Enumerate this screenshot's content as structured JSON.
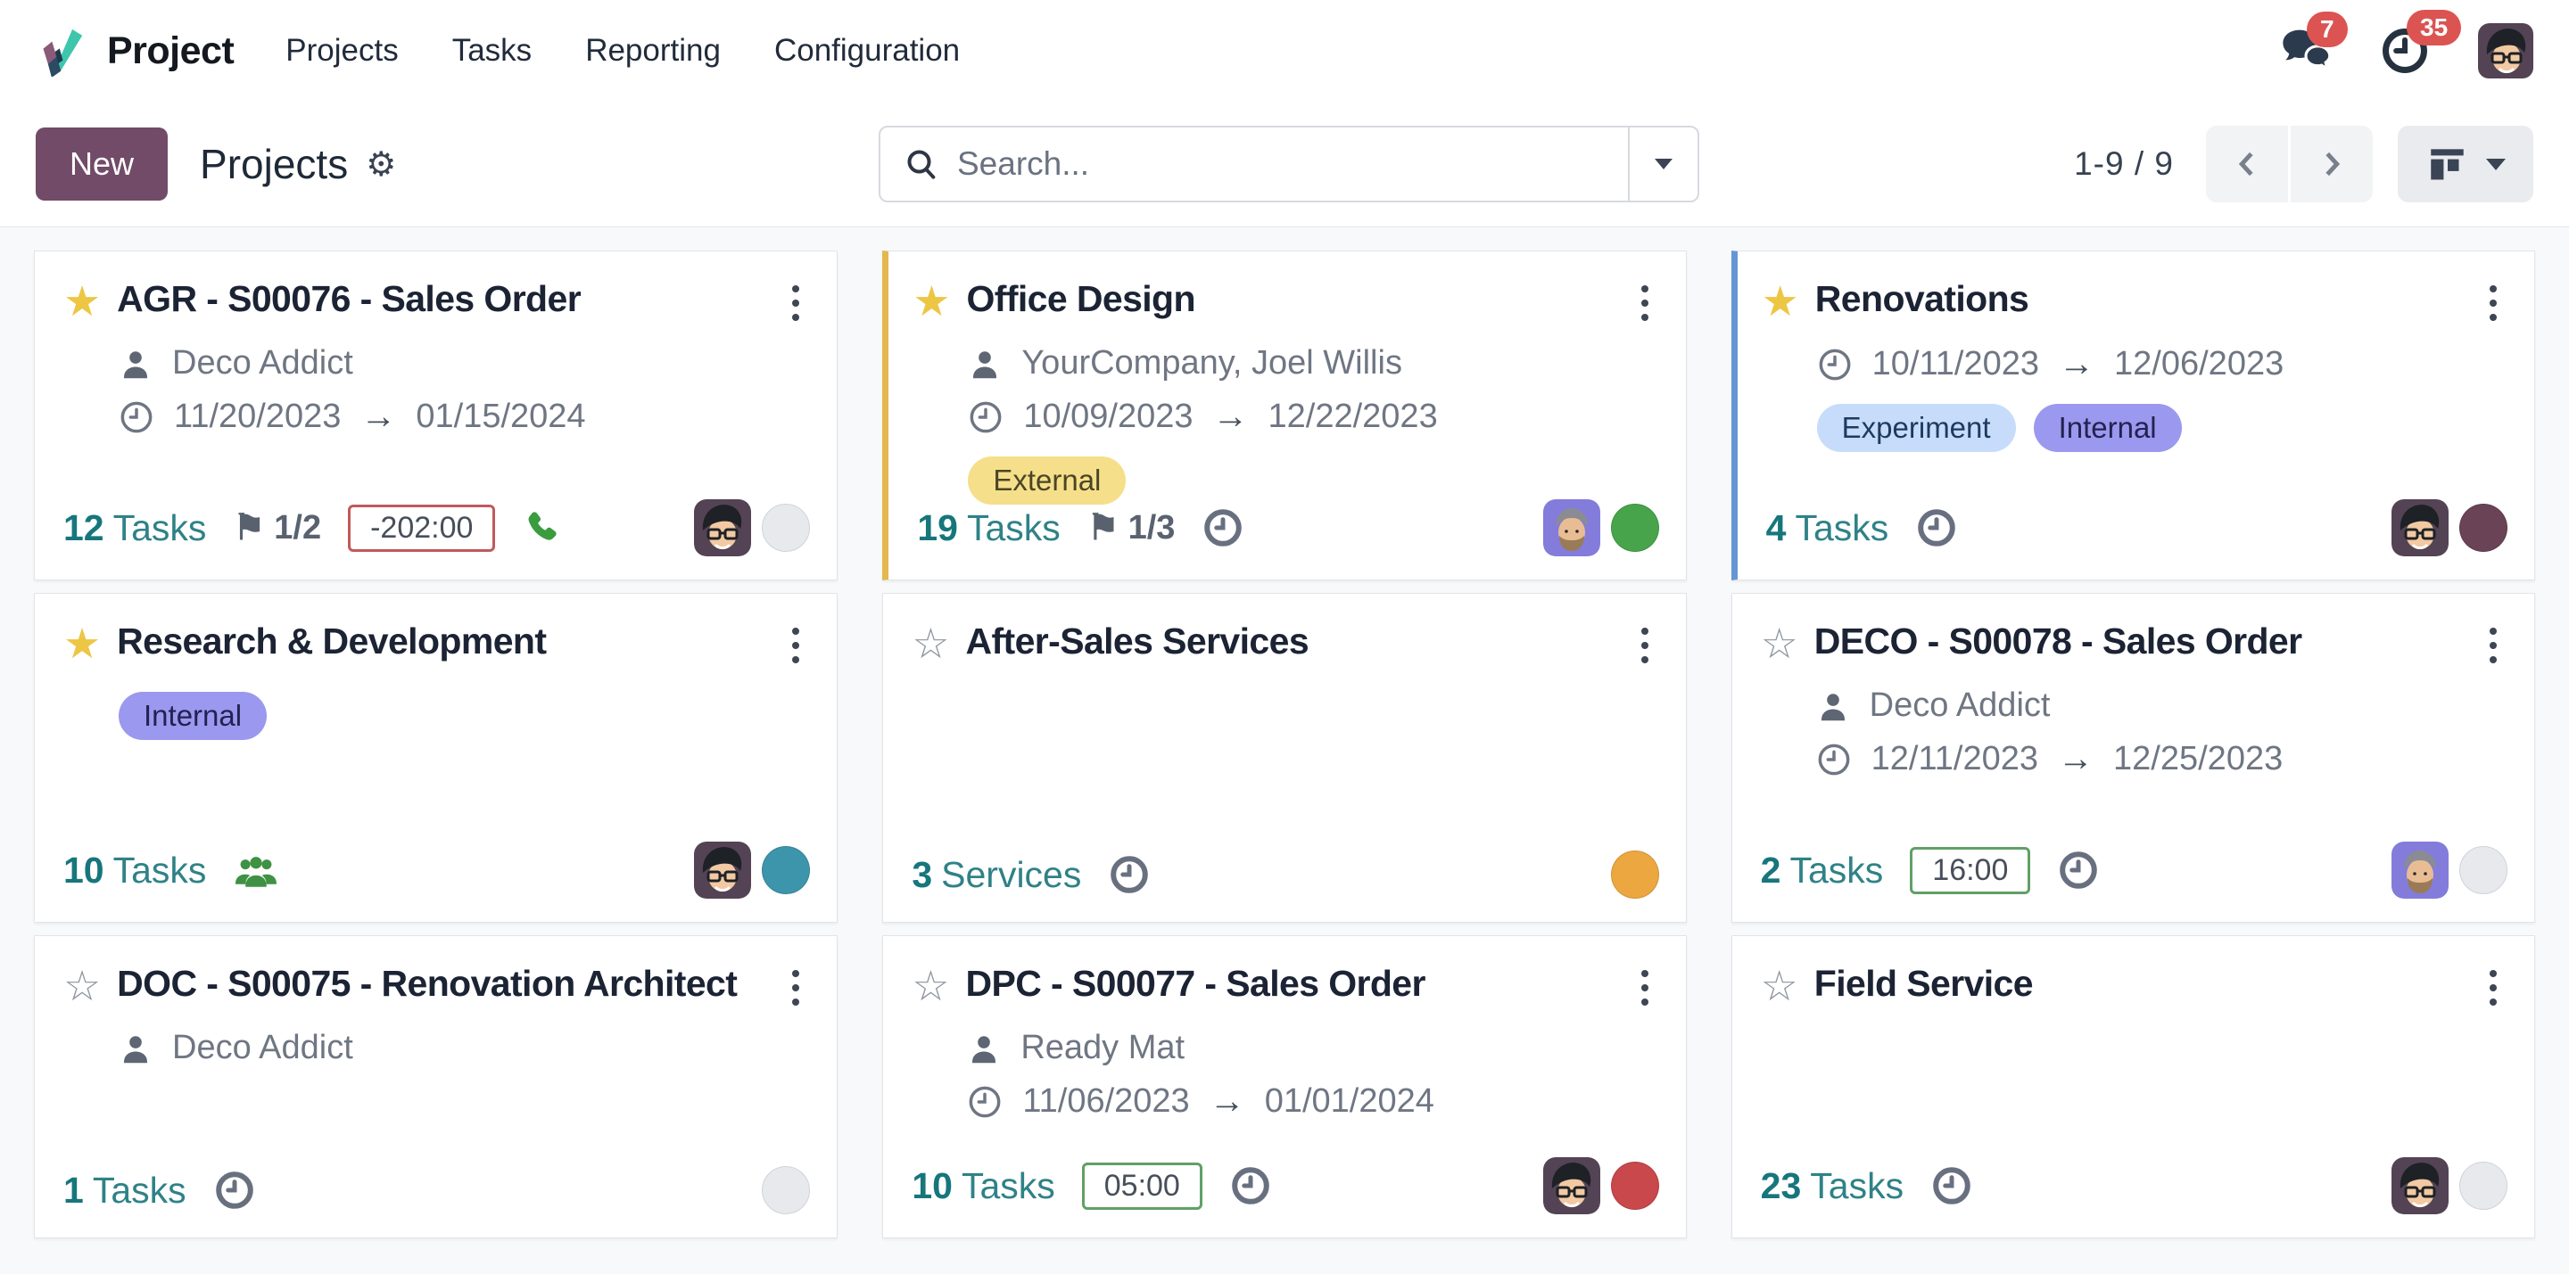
{
  "topbar": {
    "brand": "Project",
    "menu": [
      "Projects",
      "Tasks",
      "Reporting",
      "Configuration"
    ],
    "messages_badge": "7",
    "activities_badge": "35"
  },
  "control_panel": {
    "new_label": "New",
    "title": "Projects",
    "search_placeholder": "Search...",
    "pager": "1-9 / 9"
  },
  "colors": {
    "accent_yellow": "#E3B94F",
    "accent_blue": "#6695D6",
    "brand_primary": "#714B67",
    "tasks_teal": "#17767C",
    "badge_red": "#DB5452"
  },
  "cards": [
    {
      "title": "AGR - S00076 - Sales Order",
      "star": "filled",
      "accent": null,
      "partner": "Deco Addict",
      "dates": {
        "start": "11/20/2023",
        "end": "01/15/2024"
      },
      "tags": [],
      "count": {
        "value": "12",
        "label": "Tasks"
      },
      "flag": "1/2",
      "badge": {
        "text": "-202:00",
        "tone": "danger"
      },
      "footer_icons": [
        "phone"
      ],
      "avatar": "glasses",
      "status": {
        "color": "#E7E9EC",
        "muted": true
      }
    },
    {
      "title": "Office Design",
      "star": "filled",
      "accent": "#E3B94F",
      "partner": "YourCompany, Joel Willis",
      "dates": {
        "start": "10/09/2023",
        "end": "12/22/2023"
      },
      "tags": [
        {
          "label": "External",
          "bg": "#F6DF8A",
          "fg": "#4A4526"
        }
      ],
      "count": {
        "value": "19",
        "label": "Tasks"
      },
      "flag": "1/3",
      "badge": null,
      "footer_icons": [
        "clock"
      ],
      "avatar": "beard",
      "status": {
        "color": "#47A44B",
        "muted": false
      }
    },
    {
      "title": "Renovations",
      "star": "filled",
      "accent": "#6695D6",
      "partner": null,
      "dates": {
        "start": "10/11/2023",
        "end": "12/06/2023"
      },
      "tags": [
        {
          "label": "Experiment",
          "bg": "#C7DCFA",
          "fg": "#1E3A5F"
        },
        {
          "label": "Internal",
          "bg": "#9B98EF",
          "fg": "#232250"
        }
      ],
      "count": {
        "value": "4",
        "label": "Tasks"
      },
      "flag": null,
      "badge": null,
      "footer_icons": [
        "clock"
      ],
      "avatar": "glasses",
      "status": {
        "color": "#6A4357",
        "muted": false
      }
    },
    {
      "title": "Research & Development",
      "star": "filled",
      "accent": null,
      "partner": null,
      "dates": null,
      "tags": [
        {
          "label": "Internal",
          "bg": "#9B98EF",
          "fg": "#232250"
        }
      ],
      "count": {
        "value": "10",
        "label": "Tasks"
      },
      "flag": null,
      "badge": null,
      "footer_icons": [
        "users"
      ],
      "avatar": "glasses",
      "status": {
        "color": "#3D95AB",
        "muted": false
      }
    },
    {
      "title": "After-Sales Services",
      "star": "outline",
      "accent": null,
      "partner": null,
      "dates": null,
      "tags": [],
      "count": {
        "value": "3",
        "label": "Services"
      },
      "flag": null,
      "badge": null,
      "footer_icons": [
        "clock"
      ],
      "avatar": null,
      "status": {
        "color": "#ECA740",
        "muted": false
      }
    },
    {
      "title": "DECO - S00078 - Sales Order",
      "star": "outline",
      "accent": null,
      "partner": "Deco Addict",
      "dates": {
        "start": "12/11/2023",
        "end": "12/25/2023"
      },
      "tags": [],
      "count": {
        "value": "2",
        "label": "Tasks"
      },
      "flag": null,
      "badge": {
        "text": "16:00",
        "tone": "success"
      },
      "footer_icons": [
        "clock"
      ],
      "avatar": "beard",
      "status": {
        "color": "#E7E9EC",
        "muted": true
      }
    },
    {
      "title": "DOC - S00075 - Renovation Architect",
      "star": "outline",
      "accent": null,
      "partner": "Deco Addict",
      "dates": null,
      "tags": [],
      "count": {
        "value": "1",
        "label": "Tasks"
      },
      "flag": null,
      "badge": null,
      "footer_icons": [
        "clock"
      ],
      "avatar": null,
      "status": {
        "color": "#E7E9EC",
        "muted": true
      }
    },
    {
      "title": "DPC - S00077 - Sales Order",
      "star": "outline",
      "accent": null,
      "partner": "Ready Mat",
      "dates": {
        "start": "11/06/2023",
        "end": "01/01/2024"
      },
      "tags": [],
      "count": {
        "value": "10",
        "label": "Tasks"
      },
      "flag": null,
      "badge": {
        "text": "05:00",
        "tone": "success"
      },
      "footer_icons": [
        "clock"
      ],
      "avatar": "glasses",
      "status": {
        "color": "#C8484B",
        "muted": false
      }
    },
    {
      "title": "Field Service",
      "star": "outline",
      "accent": null,
      "partner": null,
      "dates": null,
      "tags": [],
      "count": {
        "value": "23",
        "label": "Tasks"
      },
      "flag": null,
      "badge": null,
      "footer_icons": [
        "clock"
      ],
      "avatar": "glasses",
      "status": {
        "color": "#E7E9EC",
        "muted": true
      }
    }
  ]
}
